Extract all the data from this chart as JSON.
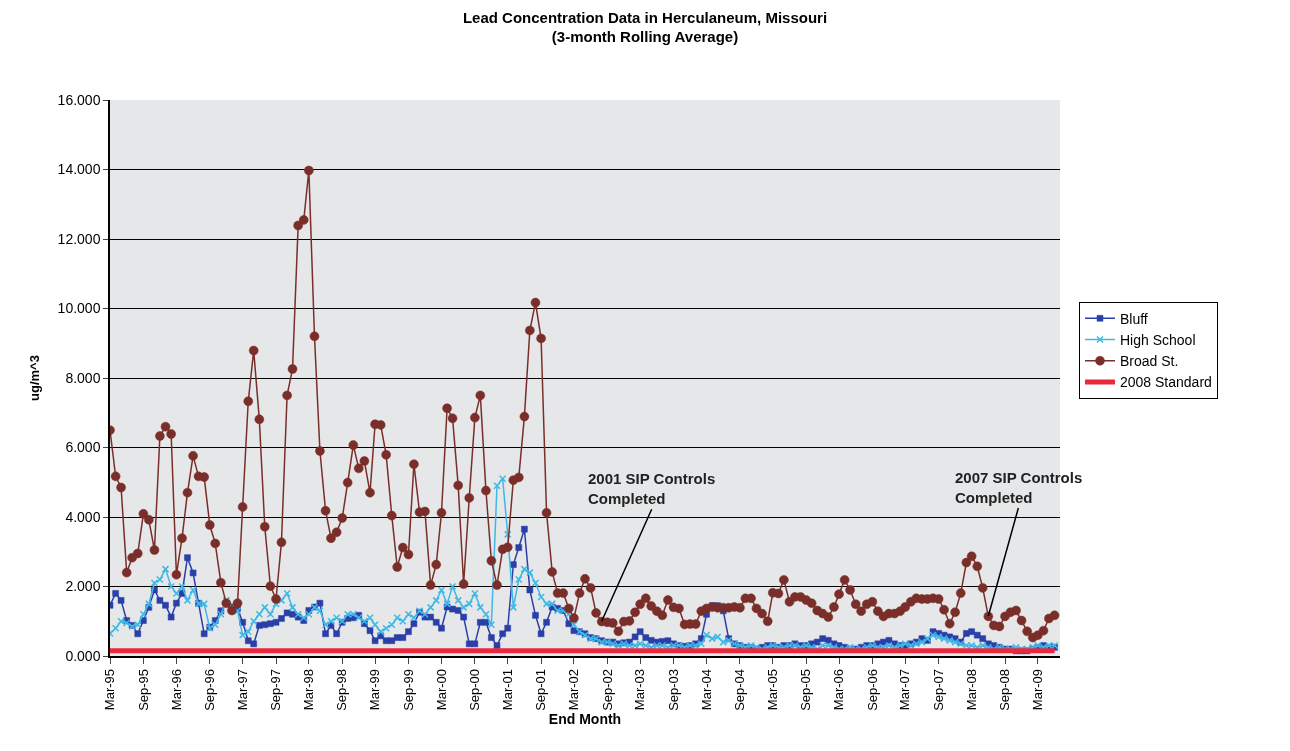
{
  "chart_data": {
    "type": "line",
    "title": "Lead Concentration Data in Herculaneum, Missouri\n(3-month Rolling Average)",
    "xlabel": "End Month",
    "ylabel": "ug/m^3",
    "x": [
      "1995-03",
      "1995-04",
      "1995-05",
      "1995-06",
      "1995-07",
      "1995-08",
      "1995-09",
      "1995-10",
      "1995-11",
      "1995-12",
      "1996-01",
      "1996-02",
      "1996-03",
      "1996-04",
      "1996-05",
      "1996-06",
      "1996-07",
      "1996-08",
      "1996-09",
      "1996-10",
      "1996-11",
      "1996-12",
      "1997-01",
      "1997-02",
      "1997-03",
      "1997-04",
      "1997-05",
      "1997-06",
      "1997-07",
      "1997-08",
      "1997-09",
      "1997-10",
      "1997-11",
      "1997-12",
      "1998-01",
      "1998-02",
      "1998-03",
      "1998-04",
      "1998-05",
      "1998-06",
      "1998-07",
      "1998-08",
      "1998-09",
      "1998-10",
      "1998-11",
      "1998-12",
      "1999-01",
      "1999-02",
      "1999-03",
      "1999-04",
      "1999-05",
      "1999-06",
      "1999-07",
      "1999-08",
      "1999-09",
      "1999-10",
      "1999-11",
      "1999-12",
      "2000-01",
      "2000-02",
      "2000-03",
      "2000-04",
      "2000-05",
      "2000-06",
      "2000-07",
      "2000-08",
      "2000-09",
      "2000-10",
      "2000-11",
      "2000-12",
      "2001-01",
      "2001-02",
      "2001-03",
      "2001-04",
      "2001-05",
      "2001-06",
      "2001-07",
      "2001-08",
      "2001-09",
      "2001-10",
      "2001-11",
      "2001-12",
      "2002-01",
      "2002-02",
      "2002-03",
      "2002-04",
      "2002-05",
      "2002-06",
      "2002-07",
      "2002-08",
      "2002-09",
      "2002-10",
      "2002-11",
      "2002-12",
      "2003-01",
      "2003-02",
      "2003-03",
      "2003-04",
      "2003-05",
      "2003-06",
      "2003-07",
      "2003-08",
      "2003-09",
      "2003-10",
      "2003-11",
      "2003-12",
      "2004-01",
      "2004-02",
      "2004-03",
      "2004-04",
      "2004-05",
      "2004-06",
      "2004-07",
      "2004-08",
      "2004-09",
      "2004-10",
      "2004-11",
      "2004-12",
      "2005-01",
      "2005-02",
      "2005-03",
      "2005-04",
      "2005-05",
      "2005-06",
      "2005-07",
      "2005-08",
      "2005-09",
      "2005-10",
      "2005-11",
      "2005-12",
      "2006-01",
      "2006-02",
      "2006-03",
      "2006-04",
      "2006-05",
      "2006-06",
      "2006-07",
      "2006-08",
      "2006-09",
      "2006-10",
      "2006-11",
      "2006-12",
      "2007-01",
      "2007-02",
      "2007-03",
      "2007-04",
      "2007-05",
      "2007-06",
      "2007-07",
      "2007-08",
      "2007-09",
      "2007-10",
      "2007-11",
      "2007-12",
      "2008-01",
      "2008-02",
      "2008-03",
      "2008-04",
      "2008-05",
      "2008-06",
      "2008-07",
      "2008-08",
      "2008-09",
      "2008-10",
      "2008-11",
      "2008-12",
      "2009-01",
      "2009-02",
      "2009-03",
      "2009-04",
      "2009-05",
      "2009-06"
    ],
    "series": [
      {
        "name": "Bluff",
        "color": "#2b3fa8",
        "marker": "square",
        "values": [
          1.46,
          1.8,
          1.6,
          1.02,
          0.88,
          0.64,
          1.02,
          1.4,
          1.9,
          1.6,
          1.46,
          1.12,
          1.52,
          1.8,
          2.83,
          2.39,
          1.52,
          0.64,
          0.83,
          1.02,
          1.3,
          1.52,
          1.41,
          1.37,
          0.97,
          0.44,
          0.35,
          0.88,
          0.9,
          0.93,
          0.97,
          1.08,
          1.24,
          1.2,
          1.12,
          1.02,
          1.31,
          1.41,
          1.52,
          0.64,
          0.88,
          0.64,
          0.97,
          1.08,
          1.1,
          1.17,
          0.93,
          0.73,
          0.44,
          0.58,
          0.44,
          0.44,
          0.53,
          0.53,
          0.7,
          0.93,
          1.26,
          1.12,
          1.12,
          0.97,
          0.8,
          1.41,
          1.35,
          1.31,
          1.12,
          0.35,
          0.35,
          0.97,
          0.97,
          0.53,
          0.3,
          0.64,
          0.8,
          2.63,
          3.12,
          3.65,
          1.9,
          1.17,
          0.64,
          0.97,
          1.41,
          1.37,
          1.31,
          0.93,
          0.73,
          0.7,
          0.64,
          0.53,
          0.5,
          0.44,
          0.4,
          0.4,
          0.35,
          0.38,
          0.4,
          0.55,
          0.7,
          0.53,
          0.45,
          0.4,
          0.42,
          0.44,
          0.35,
          0.3,
          0.28,
          0.3,
          0.35,
          0.5,
          1.2,
          1.45,
          1.45,
          1.3,
          0.5,
          0.35,
          0.3,
          0.25,
          0.25,
          0.2,
          0.25,
          0.3,
          0.3,
          0.25,
          0.3,
          0.3,
          0.35,
          0.3,
          0.3,
          0.35,
          0.4,
          0.5,
          0.45,
          0.35,
          0.3,
          0.25,
          0.2,
          0.2,
          0.25,
          0.3,
          0.3,
          0.35,
          0.4,
          0.45,
          0.35,
          0.3,
          0.3,
          0.35,
          0.4,
          0.5,
          0.45,
          0.7,
          0.65,
          0.6,
          0.55,
          0.5,
          0.4,
          0.65,
          0.7,
          0.6,
          0.5,
          0.35,
          0.3,
          0.25,
          0.2,
          0.2,
          0.15,
          0.15,
          0.15,
          0.2,
          0.25,
          0.3,
          0.25,
          0.25
        ]
      },
      {
        "name": "High School",
        "color": "#3fb8e6",
        "marker": "cross",
        "values": [
          0.65,
          0.8,
          1.0,
          0.95,
          0.85,
          0.9,
          1.2,
          1.5,
          2.1,
          2.2,
          2.5,
          2.0,
          1.8,
          2.0,
          1.6,
          1.9,
          1.5,
          1.5,
          0.8,
          0.9,
          1.2,
          1.6,
          1.4,
          1.3,
          0.6,
          0.7,
          1.0,
          1.2,
          1.4,
          1.2,
          1.5,
          1.6,
          1.8,
          1.4,
          1.2,
          1.1,
          1.2,
          1.4,
          1.3,
          0.9,
          1.0,
          1.1,
          1.0,
          1.2,
          1.2,
          1.1,
          1.0,
          1.1,
          0.9,
          0.7,
          0.8,
          0.9,
          1.1,
          1.0,
          1.2,
          1.1,
          1.3,
          1.2,
          1.4,
          1.6,
          1.9,
          1.5,
          2.0,
          1.6,
          1.4,
          1.5,
          1.8,
          1.4,
          1.2,
          0.9,
          4.9,
          5.1,
          3.5,
          1.4,
          2.2,
          2.5,
          2.4,
          2.1,
          1.7,
          1.5,
          1.5,
          1.3,
          1.3,
          1.2,
          0.9,
          0.7,
          0.6,
          0.5,
          0.5,
          0.4,
          0.4,
          0.35,
          0.3,
          0.35,
          0.3,
          0.3,
          0.35,
          0.3,
          0.25,
          0.3,
          0.3,
          0.25,
          0.3,
          0.3,
          0.25,
          0.3,
          0.3,
          0.35,
          0.6,
          0.5,
          0.55,
          0.4,
          0.45,
          0.35,
          0.3,
          0.25,
          0.3,
          0.25,
          0.2,
          0.25,
          0.3,
          0.25,
          0.25,
          0.3,
          0.3,
          0.25,
          0.3,
          0.25,
          0.2,
          0.3,
          0.3,
          0.25,
          0.2,
          0.2,
          0.25,
          0.2,
          0.2,
          0.25,
          0.3,
          0.25,
          0.25,
          0.3,
          0.25,
          0.3,
          0.35,
          0.3,
          0.35,
          0.4,
          0.5,
          0.6,
          0.55,
          0.5,
          0.45,
          0.4,
          0.35,
          0.3,
          0.3,
          0.25,
          0.3,
          0.25,
          0.2,
          0.25,
          0.2,
          0.2,
          0.25,
          0.2,
          0.2,
          0.25,
          0.3,
          0.25,
          0.3,
          0.3
        ]
      },
      {
        "name": "Broad St.",
        "color": "#7a2e2a",
        "marker": "circle",
        "values": [
          6.5,
          5.17,
          4.85,
          2.4,
          2.83,
          2.95,
          4.09,
          3.92,
          3.05,
          6.33,
          6.6,
          6.39,
          2.34,
          3.39,
          4.7,
          5.76,
          5.17,
          5.15,
          3.77,
          3.24,
          2.11,
          1.52,
          1.31,
          1.52,
          4.29,
          7.33,
          8.79,
          6.81,
          3.72,
          2.01,
          1.64,
          3.27,
          7.5,
          8.26,
          12.39,
          12.55,
          13.97,
          9.2,
          5.9,
          4.18,
          3.39,
          3.56,
          3.97,
          4.99,
          6.07,
          5.4,
          5.61,
          4.7,
          6.67,
          6.65,
          5.79,
          4.04,
          2.56,
          3.12,
          2.92,
          5.52,
          4.14,
          4.16,
          2.04,
          2.63,
          4.12,
          7.13,
          6.84,
          4.91,
          2.07,
          4.55,
          6.86,
          7.5,
          4.76,
          2.74,
          2.04,
          3.07,
          3.13,
          5.06,
          5.14,
          6.89,
          9.37,
          10.17,
          9.14,
          4.12,
          2.42,
          1.81,
          1.81,
          1.37,
          1.09,
          1.81,
          2.22,
          1.96,
          1.24,
          0.99,
          0.97,
          0.95,
          0.71,
          0.99,
          1.01,
          1.26,
          1.49,
          1.66,
          1.44,
          1.29,
          1.17,
          1.61,
          1.4,
          1.37,
          0.91,
          0.92,
          0.92,
          1.29,
          1.37,
          1.41,
          1.39,
          1.39,
          1.39,
          1.41,
          1.39,
          1.66,
          1.66,
          1.37,
          1.22,
          1.0,
          1.82,
          1.8,
          2.19,
          1.56,
          1.7,
          1.7,
          1.61,
          1.52,
          1.31,
          1.22,
          1.12,
          1.41,
          1.78,
          2.19,
          1.9,
          1.49,
          1.29,
          1.49,
          1.56,
          1.29,
          1.14,
          1.22,
          1.22,
          1.29,
          1.41,
          1.56,
          1.66,
          1.64,
          1.64,
          1.66,
          1.64,
          1.33,
          0.93,
          1.26,
          1.81,
          2.69,
          2.87,
          2.58,
          1.96,
          1.14,
          0.88,
          0.85,
          1.14,
          1.26,
          1.31,
          1.02,
          0.71,
          0.53,
          0.6,
          0.73,
          1.08,
          1.17
        ]
      },
      {
        "name": "2008 Standard",
        "color": "#e8283c",
        "marker": "none",
        "x": [
          "1995-03",
          "2009-06"
        ],
        "values": [
          0.15,
          0.15
        ]
      }
    ],
    "annotations": [
      {
        "text": "2001 SIP Controls\nCompleted",
        "x": "2002-08",
        "y": 1.0
      },
      {
        "text": "2007 SIP Controls\nCompleted",
        "x": "2008-06",
        "y": 1.15
      }
    ],
    "xlim": [
      "1995-03",
      "2009-07"
    ],
    "xticks": [
      {
        "value": "1995-03",
        "label": "Mar-95"
      },
      {
        "value": "1995-09",
        "label": "Sep-95"
      },
      {
        "value": "1996-03",
        "label": "Mar-96"
      },
      {
        "value": "1996-09",
        "label": "Sep-96"
      },
      {
        "value": "1997-03",
        "label": "Mar-97"
      },
      {
        "value": "1997-09",
        "label": "Sep-97"
      },
      {
        "value": "1998-03",
        "label": "Mar-98"
      },
      {
        "value": "1998-09",
        "label": "Sep-98"
      },
      {
        "value": "1999-03",
        "label": "Mar-99"
      },
      {
        "value": "1999-09",
        "label": "Sep-99"
      },
      {
        "value": "2000-03",
        "label": "Mar-00"
      },
      {
        "value": "2000-09",
        "label": "Sep-00"
      },
      {
        "value": "2001-03",
        "label": "Mar-01"
      },
      {
        "value": "2001-09",
        "label": "Sep-01"
      },
      {
        "value": "2002-03",
        "label": "Mar-02"
      },
      {
        "value": "2002-09",
        "label": "Sep-02"
      },
      {
        "value": "2003-03",
        "label": "Mar-03"
      },
      {
        "value": "2003-09",
        "label": "Sep-03"
      },
      {
        "value": "2004-03",
        "label": "Mar-04"
      },
      {
        "value": "2004-09",
        "label": "Sep-04"
      },
      {
        "value": "2005-03",
        "label": "Mar-05"
      },
      {
        "value": "2005-09",
        "label": "Sep-05"
      },
      {
        "value": "2006-03",
        "label": "Mar-06"
      },
      {
        "value": "2006-09",
        "label": "Sep-06"
      },
      {
        "value": "2007-03",
        "label": "Mar-07"
      },
      {
        "value": "2007-09",
        "label": "Sep-07"
      },
      {
        "value": "2008-03",
        "label": "Mar-08"
      },
      {
        "value": "2008-09",
        "label": "Sep-08"
      },
      {
        "value": "2009-03",
        "label": "Mar-09"
      }
    ],
    "ylim": [
      0,
      16
    ],
    "yticks": [
      {
        "value": 0,
        "label": "0.000"
      },
      {
        "value": 2,
        "label": "2.000"
      },
      {
        "value": 4,
        "label": "4.000"
      },
      {
        "value": 6,
        "label": "6.000"
      },
      {
        "value": 8,
        "label": "8.000"
      },
      {
        "value": 10,
        "label": "10.000"
      },
      {
        "value": 12,
        "label": "12.000"
      },
      {
        "value": 14,
        "label": "14.000"
      },
      {
        "value": 16,
        "label": "16.000"
      }
    ],
    "grid": "y",
    "legend": "right"
  }
}
